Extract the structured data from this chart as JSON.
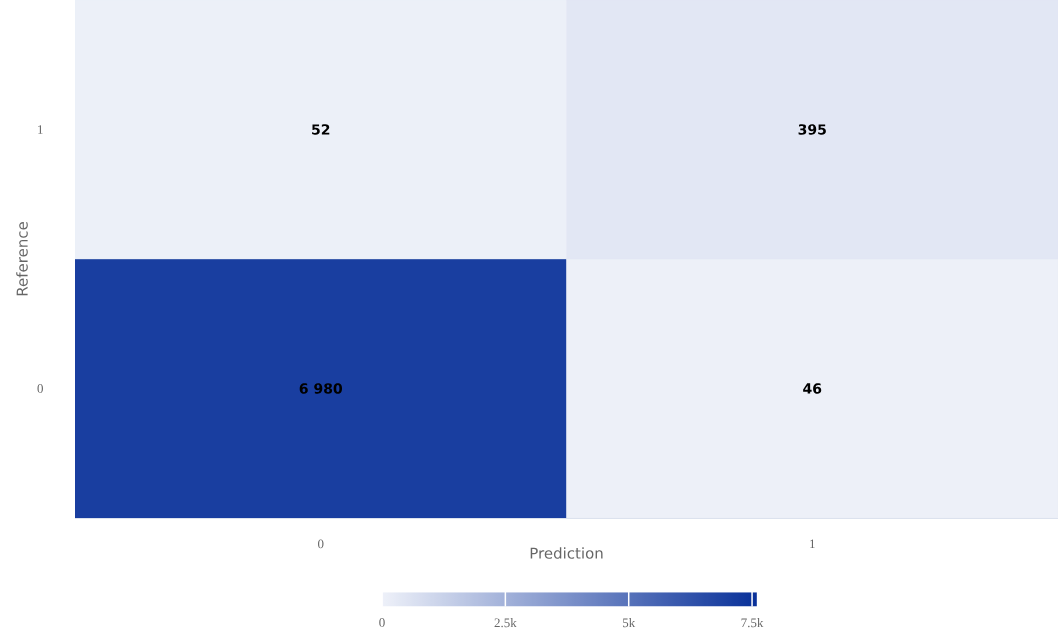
{
  "chart_data": {
    "type": "heatmap",
    "xlabel": "Prediction",
    "ylabel": "Reference",
    "categories": [
      "0",
      "1"
    ],
    "y_categories": [
      "1",
      "0"
    ],
    "cells": [
      [
        52,
        395
      ],
      [
        6980,
        46
      ]
    ],
    "cell_labels": [
      [
        "52",
        "395"
      ],
      [
        "6 980",
        "46"
      ]
    ],
    "clim": [
      0,
      7600
    ],
    "cticks": [
      {
        "value": 0,
        "label": "0"
      },
      {
        "value": 2500,
        "label": "2.5k"
      },
      {
        "value": 5000,
        "label": "5k"
      },
      {
        "value": 7500,
        "label": "7.5k"
      }
    ]
  }
}
